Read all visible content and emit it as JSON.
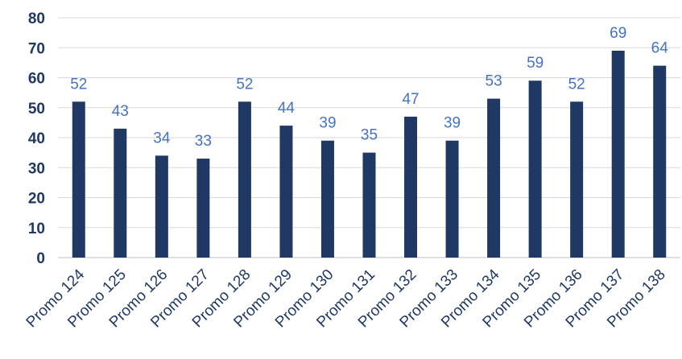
{
  "chart_data": {
    "type": "bar",
    "title": "",
    "xlabel": "",
    "ylabel": "",
    "categories": [
      "Promo 124",
      "Promo 125",
      "Promo 126",
      "Promo 127",
      "Promo 128",
      "Promo 129",
      "Promo 130",
      "Promo 131",
      "Promo 132",
      "Promo 133",
      "Promo 134",
      "Promo 135",
      "Promo 136",
      "Promo 137",
      "Promo 138"
    ],
    "values": [
      52,
      43,
      34,
      33,
      52,
      44,
      39,
      35,
      47,
      39,
      53,
      59,
      52,
      69,
      64
    ],
    "ylim": [
      0,
      80
    ],
    "yticks": [
      "0",
      "10",
      "20",
      "30",
      "40",
      "50",
      "60",
      "70",
      "80"
    ],
    "grid": true,
    "legend": "none",
    "data_labels": true,
    "colors": {
      "bar": "#1F3864",
      "data_label": "#4472C4",
      "tick_label": "#1F3864"
    }
  }
}
